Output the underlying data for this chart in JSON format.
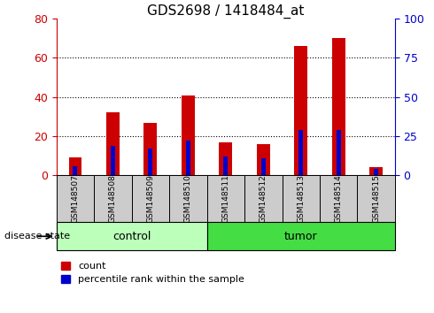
{
  "title": "GDS2698 / 1418484_at",
  "samples": [
    "GSM148507",
    "GSM148508",
    "GSM148509",
    "GSM148510",
    "GSM148511",
    "GSM148512",
    "GSM148513",
    "GSM148514",
    "GSM148515"
  ],
  "red_values": [
    9,
    32,
    27,
    41,
    17,
    16,
    66,
    70,
    4
  ],
  "blue_values_pct": [
    6,
    19,
    17,
    22,
    12,
    11,
    29,
    29,
    4
  ],
  "groups": [
    {
      "label": "control",
      "start": 0,
      "end": 4,
      "color": "#bbffbb"
    },
    {
      "label": "tumor",
      "start": 4,
      "end": 9,
      "color": "#44dd44"
    }
  ],
  "left_ylim": [
    0,
    80
  ],
  "right_ylim": [
    0,
    100
  ],
  "left_yticks": [
    0,
    20,
    40,
    60,
    80
  ],
  "right_yticks": [
    0,
    25,
    50,
    75,
    100
  ],
  "left_axis_color": "#cc0000",
  "right_axis_color": "#0000cc",
  "bar_color_red": "#cc0000",
  "bar_color_blue": "#0000cc",
  "legend_labels": [
    "count",
    "percentile rank within the sample"
  ],
  "disease_state_label": "disease state",
  "red_bar_width": 0.35,
  "blue_bar_width": 0.12,
  "figsize": [
    4.9,
    3.54
  ],
  "dpi": 100,
  "gridlines_at": [
    20,
    40,
    60
  ],
  "sample_box_color": "#cccccc"
}
